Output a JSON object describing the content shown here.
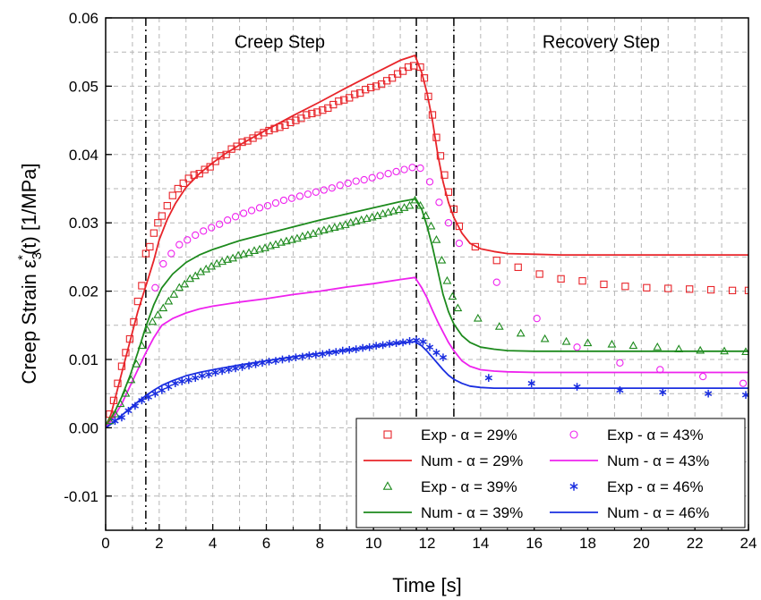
{
  "chart_data": {
    "type": "line",
    "xlabel": "Time [s]",
    "ylabel_parts": {
      "prefix": "Creep Strain ",
      "symbol": "ε",
      "subscript": "3",
      "superscript": "*",
      "suffix": "(t) [1/MPa]"
    },
    "xlim": [
      0,
      24
    ],
    "ylim": [
      -0.015,
      0.06
    ],
    "x_ticks": [
      0,
      2,
      4,
      6,
      8,
      10,
      12,
      14,
      16,
      18,
      20,
      22,
      24
    ],
    "x_tick_labels": [
      "0",
      "2",
      "4",
      "6",
      "8",
      "10",
      "12",
      "14",
      "16",
      "18",
      "20",
      "22",
      "24"
    ],
    "y_ticks": [
      -0.01,
      0,
      0.01,
      0.02,
      0.03,
      0.04,
      0.05,
      0.06
    ],
    "y_tick_labels": [
      "-0.01",
      "0.00",
      "0.01",
      "0.02",
      "0.03",
      "0.04",
      "0.05",
      "0.06"
    ],
    "grid": true,
    "vertical_dashdot_lines_x": [
      1.5,
      11.6,
      13.0
    ],
    "annotations": [
      {
        "text": "Creep Step",
        "x": 6.5,
        "y": 0.0565
      },
      {
        "text": "Recovery Step",
        "x": 18.5,
        "y": 0.0565
      }
    ],
    "legend_placement": "bottom-right",
    "colors": {
      "a29": "#e8252a",
      "a43": "#ee22ee",
      "a39": "#1d8a1d",
      "a46": "#1a2ee0"
    },
    "series": [
      {
        "key": "exp29",
        "name": "Exp - α = 29%",
        "kind": "exp",
        "marker": "square",
        "color": "#e8252a",
        "x": [
          0.15,
          0.3,
          0.45,
          0.6,
          0.75,
          0.9,
          1.05,
          1.2,
          1.35,
          1.5,
          1.65,
          1.8,
          1.95,
          2.1,
          2.3,
          2.5,
          2.7,
          2.9,
          3.1,
          3.3,
          3.5,
          3.7,
          3.9,
          4.1,
          4.3,
          4.5,
          4.7,
          4.9,
          5.1,
          5.3,
          5.5,
          5.7,
          5.9,
          6.1,
          6.3,
          6.5,
          6.7,
          6.9,
          7.1,
          7.3,
          7.5,
          7.7,
          7.9,
          8.1,
          8.3,
          8.5,
          8.7,
          8.9,
          9.1,
          9.3,
          9.5,
          9.7,
          9.9,
          10.1,
          10.3,
          10.5,
          10.7,
          10.9,
          11.1,
          11.3,
          11.5,
          11.75,
          11.9,
          12.05,
          12.2,
          12.35,
          12.5,
          12.65,
          12.8,
          13.0,
          13.2,
          13.8,
          14.6,
          15.4,
          16.2,
          17.0,
          17.8,
          18.6,
          19.4,
          20.2,
          21.0,
          21.8,
          22.6,
          23.4,
          24.0
        ],
        "y": [
          0.002,
          0.004,
          0.0065,
          0.009,
          0.011,
          0.013,
          0.0155,
          0.0185,
          0.0208,
          0.0255,
          0.0265,
          0.0285,
          0.03,
          0.031,
          0.0325,
          0.034,
          0.035,
          0.0358,
          0.0365,
          0.037,
          0.0372,
          0.0378,
          0.0382,
          0.039,
          0.0398,
          0.04,
          0.0408,
          0.0412,
          0.0418,
          0.042,
          0.0424,
          0.0428,
          0.0432,
          0.0435,
          0.0438,
          0.044,
          0.0443,
          0.0447,
          0.045,
          0.0453,
          0.0458,
          0.046,
          0.0462,
          0.0465,
          0.0468,
          0.0473,
          0.0478,
          0.048,
          0.0483,
          0.0488,
          0.049,
          0.0495,
          0.0498,
          0.05,
          0.0503,
          0.0508,
          0.0512,
          0.0518,
          0.0522,
          0.0528,
          0.053,
          0.0528,
          0.0512,
          0.0485,
          0.0458,
          0.0425,
          0.0398,
          0.037,
          0.0345,
          0.032,
          0.0295,
          0.0265,
          0.0245,
          0.0235,
          0.0225,
          0.0218,
          0.0215,
          0.021,
          0.0207,
          0.0205,
          0.0204,
          0.0203,
          0.0202,
          0.0201,
          0.0201
        ]
      },
      {
        "key": "num29",
        "name": "Num - α = 29%",
        "kind": "num",
        "color": "#e8252a",
        "x": [
          0,
          0.2,
          0.4,
          0.6,
          0.8,
          1.0,
          1.2,
          1.4,
          1.6,
          1.8,
          2.0,
          2.3,
          2.6,
          3.0,
          3.5,
          4.0,
          4.5,
          5.0,
          6.0,
          7.0,
          8.0,
          9.0,
          10.0,
          11.0,
          11.55,
          11.8,
          12.0,
          12.2,
          12.4,
          12.6,
          12.8,
          13.0,
          13.3,
          13.6,
          14.0,
          14.5,
          15.0,
          16.0,
          17.0,
          18.0,
          20.0,
          22.0,
          24.0
        ],
        "y": [
          0,
          0.002,
          0.005,
          0.008,
          0.011,
          0.014,
          0.017,
          0.0195,
          0.022,
          0.0245,
          0.0275,
          0.0305,
          0.0328,
          0.0352,
          0.0372,
          0.0388,
          0.0402,
          0.0414,
          0.0436,
          0.0457,
          0.0477,
          0.0498,
          0.0518,
          0.0538,
          0.0545,
          0.052,
          0.049,
          0.045,
          0.04,
          0.036,
          0.033,
          0.0308,
          0.0285,
          0.027,
          0.0262,
          0.0258,
          0.0255,
          0.0254,
          0.0253,
          0.0253,
          0.0253,
          0.0253,
          0.0253
        ]
      },
      {
        "key": "exp39",
        "name": "Exp - α = 39%",
        "kind": "exp",
        "marker": "triangle",
        "color": "#1d8a1d",
        "x": [
          0.15,
          0.35,
          0.55,
          0.75,
          0.95,
          1.15,
          1.35,
          1.55,
          1.75,
          1.95,
          2.15,
          2.35,
          2.55,
          2.75,
          2.95,
          3.15,
          3.35,
          3.55,
          3.75,
          3.95,
          4.15,
          4.35,
          4.55,
          4.75,
          4.95,
          5.15,
          5.35,
          5.55,
          5.75,
          5.95,
          6.15,
          6.35,
          6.55,
          6.75,
          6.95,
          7.15,
          7.35,
          7.55,
          7.75,
          7.95,
          8.15,
          8.35,
          8.55,
          8.75,
          8.95,
          9.15,
          9.35,
          9.55,
          9.75,
          9.95,
          10.15,
          10.35,
          10.55,
          10.75,
          10.95,
          11.15,
          11.35,
          11.55,
          11.75,
          11.95,
          12.15,
          12.35,
          12.55,
          12.75,
          12.95,
          13.15,
          13.9,
          14.7,
          15.5,
          16.4,
          17.2,
          18.0,
          18.9,
          19.7,
          20.6,
          21.4,
          22.2,
          23.1,
          23.9
        ],
        "y": [
          0.001,
          0.002,
          0.0035,
          0.005,
          0.007,
          0.0093,
          0.012,
          0.0143,
          0.0155,
          0.0165,
          0.0175,
          0.0185,
          0.0195,
          0.0205,
          0.021,
          0.0218,
          0.0222,
          0.0228,
          0.0232,
          0.0236,
          0.024,
          0.0243,
          0.0246,
          0.0248,
          0.0252,
          0.0254,
          0.0256,
          0.0259,
          0.0261,
          0.0263,
          0.0266,
          0.0268,
          0.0271,
          0.0273,
          0.0275,
          0.0277,
          0.028,
          0.0282,
          0.0284,
          0.0287,
          0.0289,
          0.0291,
          0.0293,
          0.0295,
          0.0297,
          0.03,
          0.0302,
          0.0304,
          0.0306,
          0.0308,
          0.031,
          0.0313,
          0.0315,
          0.0317,
          0.0319,
          0.0322,
          0.0325,
          0.0333,
          0.0325,
          0.031,
          0.0295,
          0.0275,
          0.0245,
          0.0215,
          0.0192,
          0.0175,
          0.016,
          0.0148,
          0.0138,
          0.013,
          0.0126,
          0.0124,
          0.0122,
          0.012,
          0.0118,
          0.0115,
          0.0113,
          0.0112,
          0.0111
        ]
      },
      {
        "key": "num39",
        "name": "Num - α = 39%",
        "kind": "num",
        "color": "#1d8a1d",
        "x": [
          0,
          0.3,
          0.6,
          0.9,
          1.2,
          1.5,
          1.8,
          2.1,
          2.5,
          3.0,
          3.5,
          4.0,
          5.0,
          6.0,
          7.0,
          8.0,
          9.0,
          10.0,
          11.0,
          11.55,
          11.8,
          12.0,
          12.2,
          12.4,
          12.6,
          12.8,
          13.0,
          13.3,
          13.6,
          14.0,
          14.5,
          15.0,
          16.0,
          18.0,
          20.0,
          22.0,
          24.0
        ],
        "y": [
          0,
          0.002,
          0.0045,
          0.0075,
          0.011,
          0.0148,
          0.018,
          0.0205,
          0.0225,
          0.0242,
          0.0253,
          0.0261,
          0.0274,
          0.0284,
          0.0294,
          0.0304,
          0.0313,
          0.0322,
          0.0331,
          0.0335,
          0.032,
          0.0295,
          0.0265,
          0.023,
          0.0195,
          0.017,
          0.0152,
          0.0135,
          0.0125,
          0.0118,
          0.0115,
          0.0113,
          0.0112,
          0.0112,
          0.0112,
          0.0112,
          0.0112
        ]
      },
      {
        "key": "exp43",
        "name": "Exp - α  = 43%",
        "kind": "exp",
        "marker": "circle",
        "color": "#ee22ee",
        "x": [
          1.85,
          2.15,
          2.45,
          2.75,
          3.05,
          3.35,
          3.65,
          3.95,
          4.25,
          4.55,
          4.85,
          5.15,
          5.45,
          5.75,
          6.05,
          6.35,
          6.65,
          6.95,
          7.25,
          7.55,
          7.85,
          8.15,
          8.45,
          8.75,
          9.05,
          9.35,
          9.65,
          9.95,
          10.25,
          10.55,
          10.85,
          11.15,
          11.45,
          11.75,
          12.1,
          12.45,
          12.8,
          13.2,
          14.6,
          16.1,
          17.6,
          19.2,
          20.7,
          22.3,
          23.8
        ],
        "y": [
          0.0205,
          0.024,
          0.0255,
          0.0268,
          0.0275,
          0.0282,
          0.0288,
          0.0293,
          0.0298,
          0.0304,
          0.0309,
          0.0314,
          0.0318,
          0.0322,
          0.0325,
          0.0329,
          0.0333,
          0.0336,
          0.0339,
          0.0342,
          0.0345,
          0.0348,
          0.0351,
          0.0355,
          0.0358,
          0.0361,
          0.0363,
          0.0366,
          0.0369,
          0.0372,
          0.0375,
          0.0378,
          0.0381,
          0.038,
          0.036,
          0.033,
          0.03,
          0.027,
          0.0213,
          0.016,
          0.0118,
          0.0095,
          0.0085,
          0.0075,
          0.0065
        ]
      },
      {
        "key": "num43",
        "name": "Num - α = 43%",
        "kind": "num",
        "color": "#ee22ee",
        "x": [
          0,
          0.3,
          0.6,
          0.9,
          1.2,
          1.5,
          1.8,
          2.1,
          2.5,
          3.0,
          3.5,
          4.0,
          5.0,
          6.0,
          7.0,
          8.0,
          9.0,
          10.0,
          11.0,
          11.55,
          11.8,
          12.0,
          12.2,
          12.4,
          12.6,
          12.8,
          13.0,
          13.3,
          13.6,
          14.0,
          14.5,
          15.0,
          16.0,
          18.0,
          20.0,
          22.0,
          24.0
        ],
        "y": [
          0,
          0.0015,
          0.0035,
          0.006,
          0.0085,
          0.011,
          0.0132,
          0.015,
          0.016,
          0.0168,
          0.0174,
          0.0178,
          0.0184,
          0.0189,
          0.0195,
          0.02,
          0.0206,
          0.0211,
          0.0217,
          0.022,
          0.0205,
          0.019,
          0.0172,
          0.0155,
          0.014,
          0.0125,
          0.0113,
          0.0098,
          0.009,
          0.0085,
          0.0083,
          0.0082,
          0.0081,
          0.0081,
          0.0081,
          0.0081,
          0.0081
        ]
      },
      {
        "key": "exp46",
        "name": "Exp - α = 46%",
        "kind": "exp",
        "marker": "asterisk",
        "color": "#1a2ee0",
        "x": [
          0.35,
          0.6,
          0.85,
          1.1,
          1.35,
          1.6,
          1.85,
          2.1,
          2.35,
          2.6,
          2.85,
          3.1,
          3.35,
          3.6,
          3.85,
          4.1,
          4.35,
          4.6,
          4.85,
          5.1,
          5.35,
          5.6,
          5.85,
          6.1,
          6.35,
          6.6,
          6.85,
          7.1,
          7.35,
          7.6,
          7.85,
          8.1,
          8.35,
          8.6,
          8.85,
          9.1,
          9.35,
          9.6,
          9.85,
          10.1,
          10.35,
          10.6,
          10.85,
          11.1,
          11.35,
          11.6,
          11.85,
          12.1,
          12.35,
          12.6,
          14.3,
          15.9,
          17.6,
          19.2,
          20.8,
          22.5,
          23.9
        ],
        "y": [
          0.001,
          0.0015,
          0.0025,
          0.0032,
          0.004,
          0.0045,
          0.005,
          0.0055,
          0.006,
          0.0065,
          0.0068,
          0.007,
          0.0073,
          0.0076,
          0.0078,
          0.0081,
          0.0083,
          0.0085,
          0.0087,
          0.0089,
          0.0091,
          0.0093,
          0.0095,
          0.0097,
          0.0098,
          0.01,
          0.0101,
          0.0103,
          0.0104,
          0.0106,
          0.0107,
          0.0108,
          0.011,
          0.0111,
          0.0113,
          0.0114,
          0.0115,
          0.0117,
          0.0118,
          0.012,
          0.0121,
          0.0123,
          0.0124,
          0.0125,
          0.0127,
          0.0128,
          0.0126,
          0.0118,
          0.011,
          0.0103,
          0.0073,
          0.0065,
          0.006,
          0.0055,
          0.0052,
          0.005,
          0.0048
        ]
      },
      {
        "key": "num46",
        "name": "Num - α = 46%",
        "kind": "num",
        "color": "#1a2ee0",
        "x": [
          0,
          0.3,
          0.6,
          0.9,
          1.2,
          1.5,
          1.8,
          2.1,
          2.5,
          3.0,
          3.5,
          4.0,
          5.0,
          6.0,
          7.0,
          8.0,
          9.0,
          10.0,
          11.0,
          11.55,
          11.8,
          12.0,
          12.2,
          12.4,
          12.6,
          12.8,
          13.0,
          13.3,
          13.6,
          14.0,
          14.5,
          15.0,
          16.0,
          18.0,
          20.0,
          22.0,
          24.0
        ],
        "y": [
          0,
          0.0008,
          0.0018,
          0.0028,
          0.0038,
          0.0047,
          0.0055,
          0.0062,
          0.0069,
          0.0076,
          0.0081,
          0.0085,
          0.0092,
          0.0098,
          0.0104,
          0.0109,
          0.0114,
          0.0119,
          0.0124,
          0.0126,
          0.012,
          0.0112,
          0.0103,
          0.0094,
          0.0085,
          0.0077,
          0.0071,
          0.0065,
          0.0061,
          0.0059,
          0.0058,
          0.0058,
          0.0058,
          0.0058,
          0.0058,
          0.0058,
          0.0058
        ]
      }
    ],
    "legend_order": [
      [
        "exp29",
        "exp43"
      ],
      [
        "num29",
        "num43"
      ],
      [
        "exp39",
        "exp46"
      ],
      [
        "num39",
        "num46"
      ]
    ]
  }
}
